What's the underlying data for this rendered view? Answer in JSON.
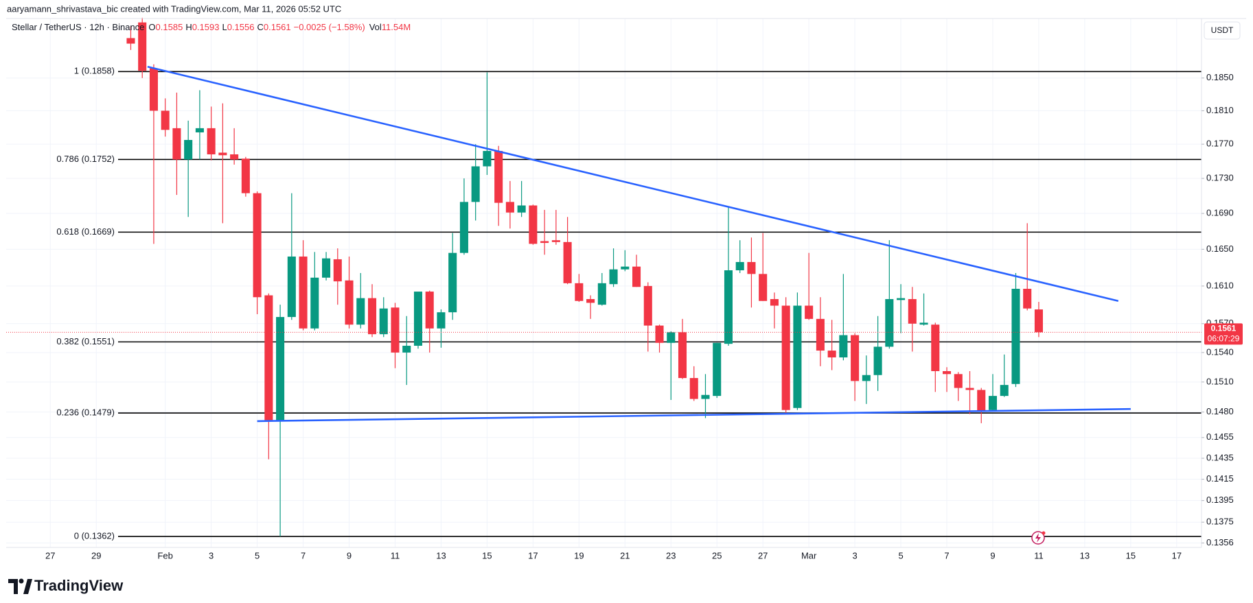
{
  "chart_data": {
    "type": "candlestick",
    "attribution": "aaryamann_shrivastava_bic created with TradingView.com, Mar 11, 2026 05:52 UTC",
    "title": "Stellar / TetherUS · 12h · Binance",
    "legend_labels": {
      "open": "O",
      "high": "H",
      "low": "L",
      "close": "C",
      "volume": "Vol"
    },
    "change": "−0.0025 (−1.58%)",
    "volume": "11.54M",
    "currency": "USDT",
    "countdown": "06:07:29",
    "brand": "TradingView",
    "up_color": "#089981",
    "down_color": "#f23645",
    "log_scale": true,
    "grid": true,
    "xlim": [
      -6.92,
      45.08
    ],
    "xticks": [
      {
        "value": -5,
        "label": "27"
      },
      {
        "value": -3,
        "label": "29"
      },
      {
        "value": 0,
        "label": "Feb"
      },
      {
        "value": 2,
        "label": "3"
      },
      {
        "value": 4,
        "label": "5"
      },
      {
        "value": 6,
        "label": "7"
      },
      {
        "value": 8,
        "label": "9"
      },
      {
        "value": 10,
        "label": "11"
      },
      {
        "value": 12,
        "label": "13"
      },
      {
        "value": 14,
        "label": "15"
      },
      {
        "value": 16,
        "label": "17"
      },
      {
        "value": 18,
        "label": "19"
      },
      {
        "value": 20,
        "label": "21"
      },
      {
        "value": 22,
        "label": "23"
      },
      {
        "value": 24,
        "label": "25"
      },
      {
        "value": 26,
        "label": "27"
      },
      {
        "value": 28,
        "label": "Mar"
      },
      {
        "value": 30,
        "label": "3"
      },
      {
        "value": 32,
        "label": "5"
      },
      {
        "value": 34,
        "label": "7"
      },
      {
        "value": 36,
        "label": "9"
      },
      {
        "value": 38,
        "label": "11"
      },
      {
        "value": 40,
        "label": "13"
      },
      {
        "value": 42,
        "label": "15"
      },
      {
        "value": 44,
        "label": "17"
      }
    ],
    "ylim": [
      0.1352,
      0.1925
    ],
    "yticks": [
      {
        "value": 0.185,
        "label": "0.1850"
      },
      {
        "value": 0.181,
        "label": "0.1810"
      },
      {
        "value": 0.177,
        "label": "0.1770"
      },
      {
        "value": 0.173,
        "label": "0.1730"
      },
      {
        "value": 0.169,
        "label": "0.1690"
      },
      {
        "value": 0.165,
        "label": "0.1650"
      },
      {
        "value": 0.161,
        "label": "0.1610"
      },
      {
        "value": 0.157,
        "label": "0.1570"
      },
      {
        "value": 0.154,
        "label": "0.1540"
      },
      {
        "value": 0.151,
        "label": "0.1510"
      },
      {
        "value": 0.148,
        "label": "0.1480"
      },
      0.1455,
      0.1435,
      0.1415,
      0.1395,
      0.1375,
      0.1356
    ],
    "fib_levels": [
      {
        "label": "1 (0.1858)",
        "value": 0.1858
      },
      {
        "label": "0.786 (0.1752)",
        "value": 0.1752
      },
      {
        "label": "0.618 (0.1669)",
        "value": 0.1669
      },
      {
        "label": "0.382 (0.1551)",
        "value": 0.1551
      },
      {
        "label": "0.236 (0.1479)",
        "value": 0.1479
      },
      {
        "label": "0 (0.1362)",
        "value": 0.1362
      }
    ],
    "trendlines": [
      {
        "color": "#2962ff",
        "x": [
          -0.77,
          41.46
        ],
        "y": [
          0.1864,
          0.1594
        ]
      },
      {
        "color": "#2962ff",
        "x": [
          4.0,
          42.0
        ],
        "y": [
          0.1471,
          0.1483
        ]
      }
    ],
    "x": [
      -1.5,
      -1,
      -0.5,
      0,
      0.5,
      1,
      1.5,
      2,
      2.5,
      3,
      3.5,
      4,
      4.5,
      5,
      5.5,
      6,
      6.5,
      7,
      7.5,
      8,
      8.5,
      9,
      9.5,
      10,
      10.5,
      11,
      11.5,
      12,
      12.5,
      13,
      13.5,
      14,
      14.5,
      15,
      15.5,
      16,
      16.5,
      17,
      17.5,
      18,
      18.5,
      19,
      19.5,
      20,
      20.5,
      21,
      21.5,
      22,
      22.5,
      23,
      23.5,
      24,
      24.5,
      25,
      25.5,
      26,
      26.5,
      27,
      27.5,
      28,
      28.5,
      29,
      29.5,
      30,
      30.5,
      31,
      31.5,
      32,
      32.5,
      33,
      33.5,
      34,
      34.5,
      35,
      35.5,
      36,
      36.5,
      37,
      37.5,
      38
    ],
    "open": [
      0.19,
      0.192,
      0.1862,
      0.181,
      0.1789,
      0.1752,
      0.1784,
      0.1789,
      0.176,
      0.1758,
      0.1753,
      0.1713,
      0.16,
      0.1472,
      0.1577,
      0.1642,
      0.1565,
      0.1619,
      0.1639,
      0.1616,
      0.1569,
      0.1597,
      0.1559,
      0.1587,
      0.154,
      0.1547,
      0.1604,
      0.1565,
      0.1582,
      0.1646,
      0.1703,
      0.1744,
      0.1762,
      0.1703,
      0.1691,
      0.1699,
      0.1659,
      0.166,
      0.1658,
      0.1613,
      0.1596,
      0.159,
      0.1612,
      0.1628,
      0.1631,
      0.161,
      0.1568,
      0.155,
      0.1561,
      0.1514,
      0.1493,
      0.1496,
      0.1549,
      0.1627,
      0.1636,
      0.1623,
      0.1596,
      0.1589,
      0.1484,
      0.1589,
      0.1575,
      0.1542,
      0.1535,
      0.1558,
      0.1511,
      0.1517,
      0.1546,
      0.1595,
      0.1596,
      0.1569,
      0.1569,
      0.1521,
      0.1518,
      0.1504,
      0.1502,
      0.1482,
      0.1496,
      0.1508,
      0.1607,
      0.1585
    ],
    "high": [
      0.1915,
      0.1926,
      0.1867,
      0.1825,
      0.1832,
      0.1798,
      0.1835,
      0.1815,
      0.1819,
      0.1789,
      0.1755,
      0.1715,
      0.1602,
      0.159,
      0.1713,
      0.166,
      0.1647,
      0.1647,
      0.1651,
      0.1642,
      0.1624,
      0.1612,
      0.1598,
      0.1592,
      0.1578,
      0.1603,
      0.1605,
      0.1585,
      0.1668,
      0.173,
      0.177,
      0.1857,
      0.1768,
      0.1727,
      0.1727,
      0.17,
      0.1694,
      0.1694,
      0.1686,
      0.1623,
      0.16,
      0.1624,
      0.1651,
      0.1649,
      0.1644,
      0.1614,
      0.1569,
      0.1562,
      0.1575,
      0.1526,
      0.1518,
      0.155,
      0.1698,
      0.166,
      0.1663,
      0.1668,
      0.1603,
      0.1598,
      0.1603,
      0.1646,
      0.1598,
      0.1574,
      0.1623,
      0.156,
      0.1537,
      0.1578,
      0.166,
      0.1612,
      0.1609,
      0.1602,
      0.1571,
      0.1525,
      0.152,
      0.1521,
      0.1504,
      0.1518,
      0.1538,
      0.1624,
      0.1679,
      0.1593
    ],
    "low": [
      0.1885,
      0.185,
      0.1656,
      0.1779,
      0.1711,
      0.1686,
      0.1752,
      0.1751,
      0.1679,
      0.1746,
      0.1709,
      0.158,
      0.1434,
      0.1362,
      0.1574,
      0.1563,
      0.1563,
      0.1616,
      0.159,
      0.1565,
      0.1565,
      0.1556,
      0.1556,
      0.1524,
      0.1507,
      0.1544,
      0.154,
      0.1545,
      0.1574,
      0.1644,
      0.1682,
      0.1734,
      0.1676,
      0.1673,
      0.1686,
      0.1655,
      0.1644,
      0.1655,
      0.1612,
      0.1593,
      0.1575,
      0.1589,
      0.1609,
      0.1626,
      0.1609,
      0.1541,
      0.154,
      0.1492,
      0.1513,
      0.1491,
      0.1474,
      0.1494,
      0.1547,
      0.1624,
      0.1587,
      0.1594,
      0.1565,
      0.1479,
      0.1482,
      0.1574,
      0.1526,
      0.1522,
      0.1532,
      0.1491,
      0.1488,
      0.1501,
      0.1544,
      0.156,
      0.1541,
      0.1568,
      0.15,
      0.15,
      0.1491,
      0.1478,
      0.1469,
      0.1481,
      0.1495,
      0.1505,
      0.1584,
      0.1556
    ],
    "close": [
      0.1893,
      0.1859,
      0.181,
      0.1787,
      0.1752,
      0.1775,
      0.1789,
      0.1758,
      0.1757,
      0.1752,
      0.1713,
      0.1598,
      0.1472,
      0.1577,
      0.1642,
      0.1565,
      0.1619,
      0.164,
      0.1615,
      0.1569,
      0.1597,
      0.1559,
      0.1586,
      0.154,
      0.1547,
      0.1604,
      0.1565,
      0.1582,
      0.1646,
      0.1703,
      0.1744,
      0.1762,
      0.1702,
      0.1691,
      0.1699,
      0.1656,
      0.1657,
      0.1658,
      0.1613,
      0.1594,
      0.1592,
      0.1613,
      0.1628,
      0.1631,
      0.1609,
      0.1568,
      0.155,
      0.1561,
      0.1514,
      0.1493,
      0.1497,
      0.155,
      0.1627,
      0.1636,
      0.1623,
      0.1594,
      0.1589,
      0.1482,
      0.1589,
      0.1575,
      0.1542,
      0.1535,
      0.1558,
      0.1511,
      0.1517,
      0.1546,
      0.1596,
      0.1597,
      0.157,
      0.1571,
      0.1521,
      0.1518,
      0.1504,
      0.1502,
      0.1481,
      0.1496,
      0.1507,
      0.1607,
      0.1586,
      0.1561
    ]
  }
}
